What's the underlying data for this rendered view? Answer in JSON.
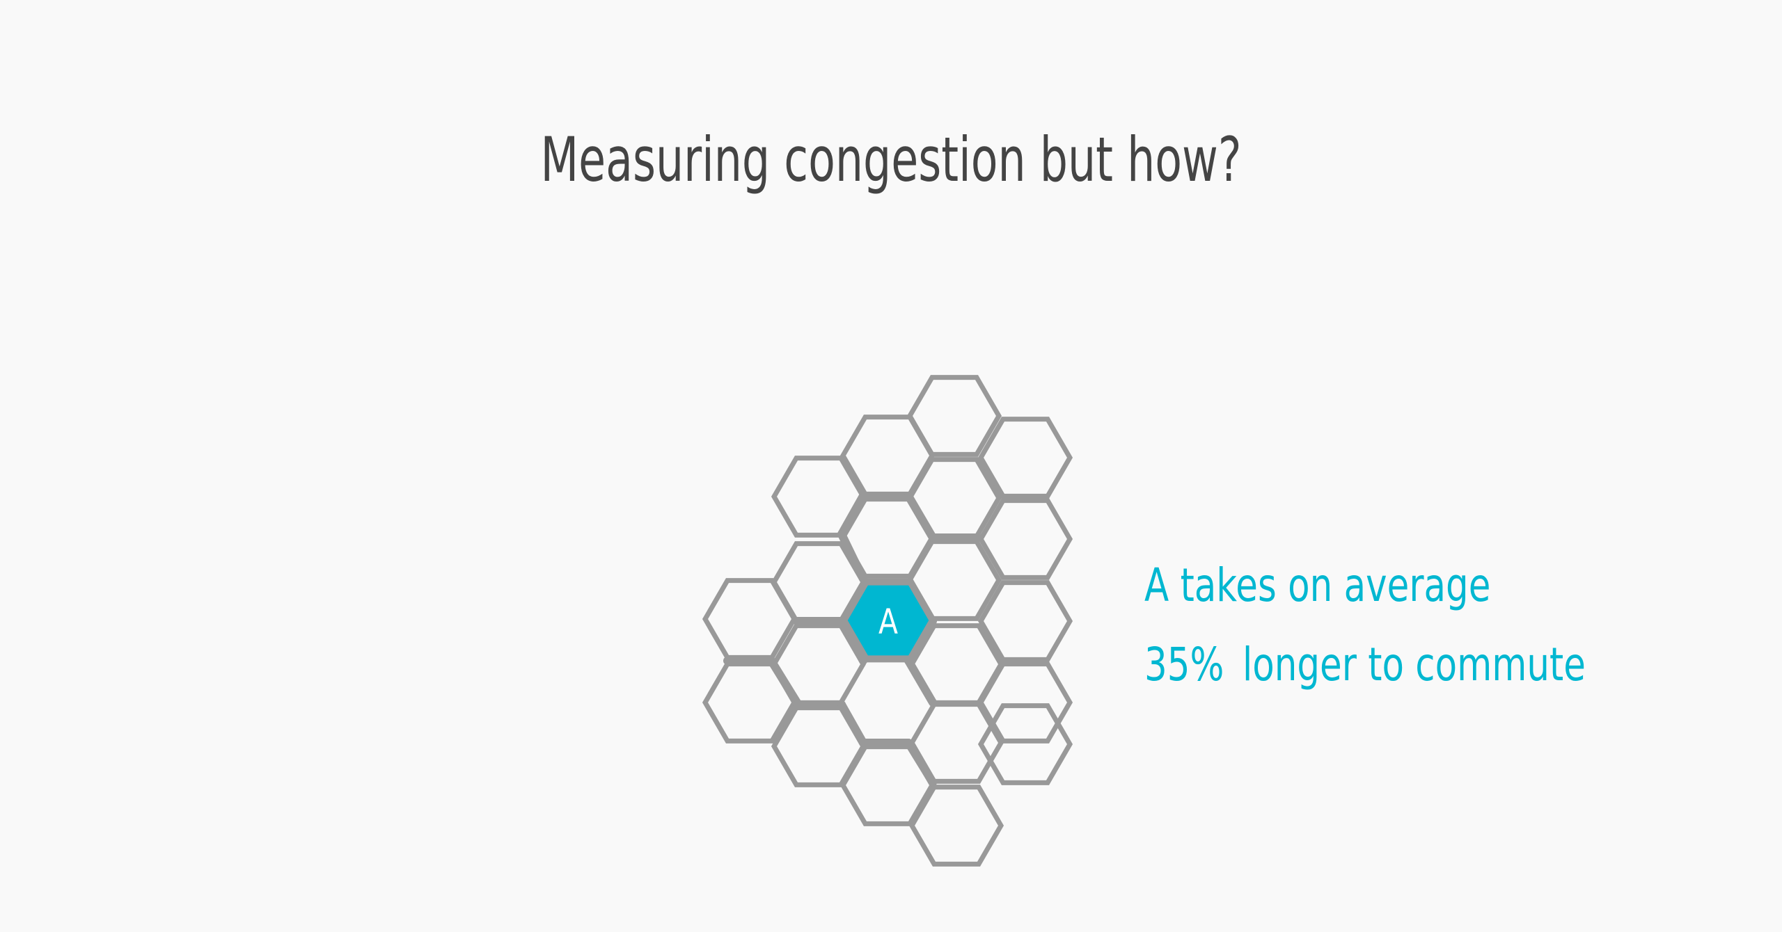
{
  "title": "Measuring congestion but how?",
  "highlight_cell": {
    "label": "A"
  },
  "caption": {
    "line1": "A takes on average",
    "line2_value": "35%",
    "line2_rest": "longer to commute"
  },
  "colors": {
    "background": "#f9f9f9",
    "title": "#444444",
    "grid_stroke": "#999999",
    "accent": "#00b7d1",
    "highlight_label": "#ffffff"
  }
}
